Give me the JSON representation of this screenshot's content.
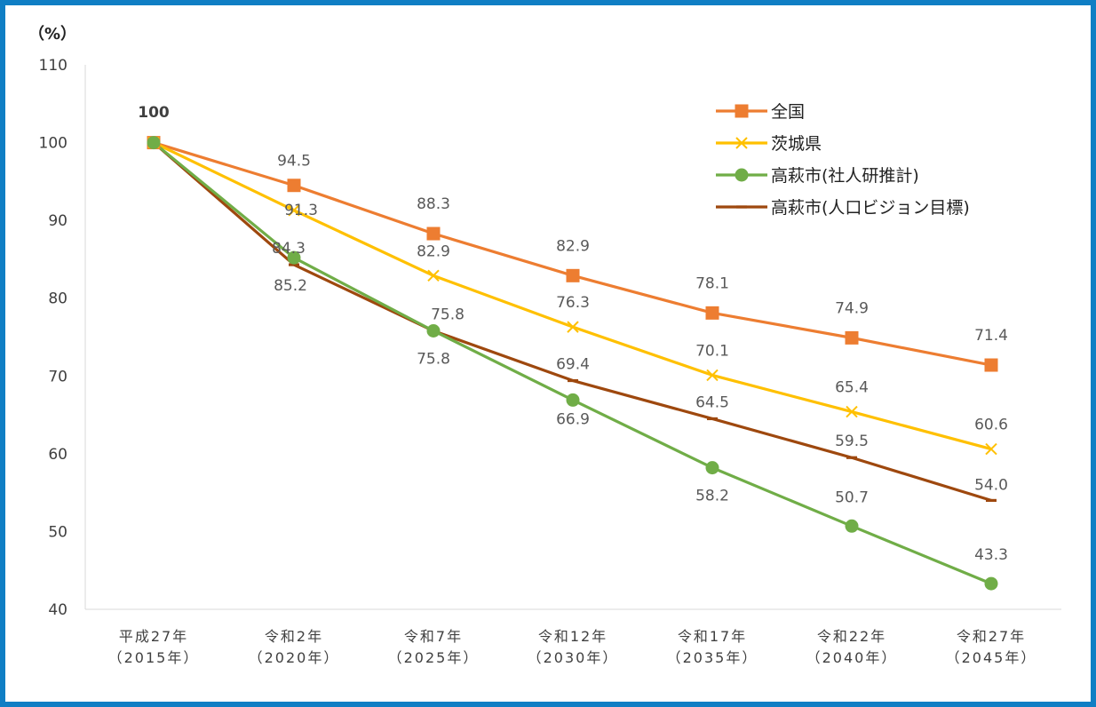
{
  "chart_data": {
    "type": "line",
    "y_unit_label": "（%）",
    "ylim": [
      40,
      110
    ],
    "yticks": [
      40,
      50,
      60,
      70,
      80,
      90,
      100,
      110
    ],
    "grid": false,
    "legend_position": "top-right",
    "categories": [
      [
        "平成27年",
        "（2015年）"
      ],
      [
        "令和2年",
        "（2020年）"
      ],
      [
        "令和7年",
        "（2025年）"
      ],
      [
        "令和12年",
        "（2030年）"
      ],
      [
        "令和17年",
        "（2035年）"
      ],
      [
        "令和22年",
        "（2040年）"
      ],
      [
        "令和27年",
        "（2045年）"
      ]
    ],
    "first_point_label": "100",
    "series": [
      {
        "name": "全国",
        "marker": "square",
        "color": "#ed7d31",
        "values": [
          100,
          94.5,
          88.3,
          82.9,
          78.1,
          74.9,
          71.4
        ],
        "labels": [
          "",
          "94.5",
          "88.3",
          "82.9",
          "78.1",
          "74.9",
          "71.4"
        ]
      },
      {
        "name": "茨城県",
        "marker": "x",
        "color": "#ffc000",
        "values": [
          100,
          91.3,
          82.9,
          76.3,
          70.1,
          65.4,
          60.6
        ],
        "labels": [
          "",
          "91.3",
          "82.9",
          "76.3",
          "70.1",
          "65.4",
          "60.6"
        ]
      },
      {
        "name": "高萩市(社人研推計)",
        "marker": "circle",
        "color": "#70ad47",
        "values": [
          100,
          85.2,
          75.8,
          66.9,
          58.2,
          50.7,
          43.3
        ],
        "labels": [
          "",
          "85.2",
          "75.8",
          "66.9",
          "58.2",
          "50.7",
          "43.3"
        ]
      },
      {
        "name": "高萩市(人口ビジョン目標)",
        "marker": "dash",
        "color": "#9e480e",
        "values": [
          100,
          84.3,
          75.8,
          69.4,
          64.5,
          59.5,
          54.0
        ],
        "labels": [
          "",
          "84.3",
          "75.8",
          "69.4",
          "64.5",
          "59.5",
          "54.0"
        ]
      }
    ]
  }
}
